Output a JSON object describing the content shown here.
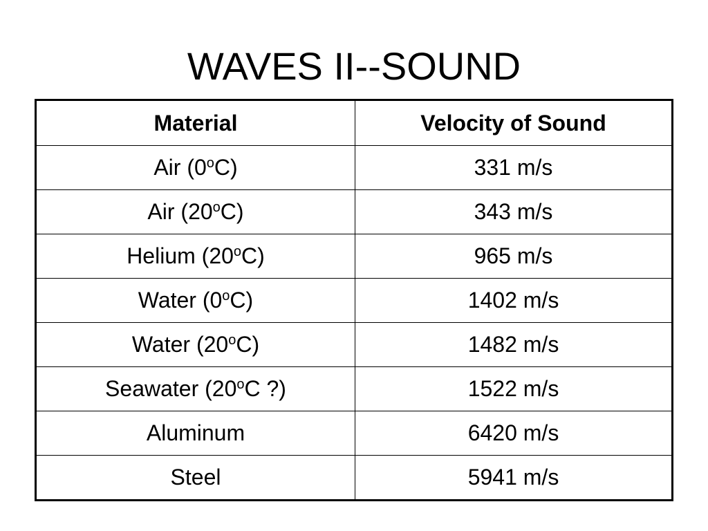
{
  "title": "WAVES II--SOUND",
  "table": {
    "header": [
      "Material",
      "Velocity of Sound"
    ],
    "rows": [
      {
        "material": [
          "Air (0",
          "o",
          "C)"
        ],
        "velocity": "331 m/s"
      },
      {
        "material": [
          "Air (20",
          "o",
          "C)"
        ],
        "velocity": "343 m/s"
      },
      {
        "material": [
          "Helium (20",
          "o",
          "C)"
        ],
        "velocity": "965 m/s"
      },
      {
        "material": [
          "Water (0",
          "o",
          "C)"
        ],
        "velocity": "1402 m/s"
      },
      {
        "material": [
          "Water (20",
          "o",
          "C)"
        ],
        "velocity": "1482 m/s"
      },
      {
        "material": [
          "Seawater (20",
          "o",
          "C ?)"
        ],
        "velocity": "1522 m/s"
      },
      {
        "material": [
          "Aluminum"
        ],
        "velocity": "6420 m/s"
      },
      {
        "material": [
          "Steel"
        ],
        "velocity": "5941 m/s"
      }
    ]
  }
}
